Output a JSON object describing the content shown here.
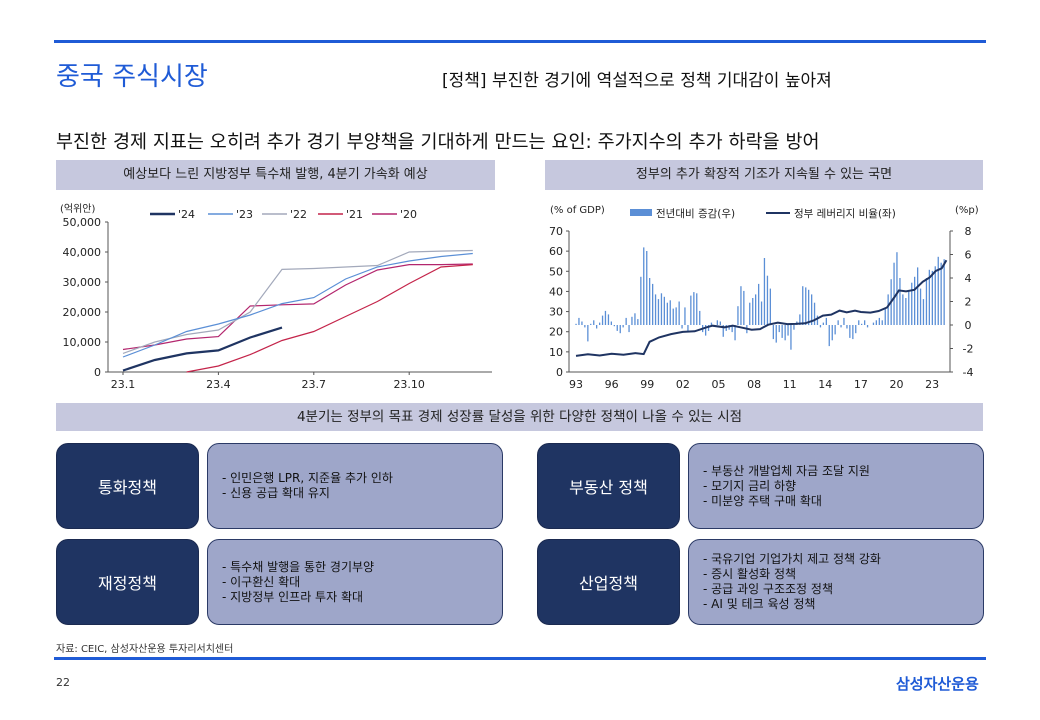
{
  "header": {
    "title": "중국 주식시장",
    "subtitle": "[정책] 부진한 경기에 역설적으로 정책 기대감이 높아져",
    "headline": "부진한 경제 지표는 오히려 추가 경기 부양책을 기대하게 만드는 요인: 주가지수의 추가 하락을 방어"
  },
  "left_panel": {
    "title": "예상보다 느린 지방정부 특수채 발행, 4분기 가속화 예상"
  },
  "right_panel": {
    "title": "정부의 추가 확장적 기조가 지속될 수 있는 국면"
  },
  "chart_data": [
    {
      "type": "line",
      "unit_label": "(억위안)",
      "x_tick_labels": [
        "23.1",
        "23.4",
        "23.7",
        "23.10"
      ],
      "ylim": [
        0,
        50000
      ],
      "y_ticks": [
        0,
        10000,
        20000,
        30000,
        40000,
        50000
      ],
      "y_tick_labels": [
        "0",
        "10,000",
        "20,000",
        "30,000",
        "40,000",
        "50,000"
      ],
      "legend_position": "top",
      "months": [
        1,
        2,
        3,
        4,
        5,
        6,
        7,
        8,
        9,
        10,
        11,
        12
      ],
      "series": [
        {
          "name": "'24",
          "color": "#1f3462",
          "width": 2.2,
          "values": [
            500,
            4000,
            6200,
            7200,
            11500,
            14800,
            null,
            null,
            null,
            null,
            null,
            null
          ]
        },
        {
          "name": "'23",
          "color": "#5b8fd6",
          "width": 1.2,
          "values": [
            5000,
            9000,
            13500,
            16000,
            19000,
            22800,
            24800,
            31000,
            35000,
            37000,
            38500,
            39500
          ]
        },
        {
          "name": "'22",
          "color": "#a3a9bb",
          "width": 1.2,
          "values": [
            6200,
            10000,
            12500,
            14000,
            20000,
            34200,
            34500,
            35000,
            35500,
            40000,
            40300,
            40500
          ]
        },
        {
          "name": "'21",
          "color": "#c4244a",
          "width": 1.2,
          "values": [
            null,
            null,
            0,
            2000,
            5800,
            10500,
            13500,
            18500,
            23500,
            29500,
            35000,
            35800
          ]
        },
        {
          "name": "'20",
          "color": "#b3266e",
          "width": 1.2,
          "values": [
            7500,
            9000,
            11000,
            11800,
            22000,
            22400,
            22700,
            29000,
            34000,
            35800,
            35800,
            36000
          ]
        }
      ]
    },
    {
      "type": "bar+line",
      "left_axis_label": "(% of GDP)",
      "right_axis_label": "(%p)",
      "x_tick_labels": [
        "93",
        "96",
        "99",
        "02",
        "05",
        "08",
        "11",
        "14",
        "17",
        "20",
        "23"
      ],
      "x_range": [
        1993,
        2024.25
      ],
      "left_ylim": [
        0,
        70
      ],
      "left_ticks": [
        0,
        10,
        20,
        30,
        40,
        50,
        60,
        70
      ],
      "right_ylim": [
        -4,
        8
      ],
      "right_ticks": [
        -4,
        -2,
        0,
        2,
        4,
        6,
        8
      ],
      "bar_series": {
        "name": "전년대비 증감(우)",
        "color": "#5b8fd6",
        "axis": "right",
        "values": [
          0.1,
          0.6,
          0.3,
          -0.2,
          -1.4,
          0.1,
          0.4,
          -0.3,
          0.2,
          0.8,
          1.2,
          0.9,
          0.3,
          -0.1,
          -0.5,
          -0.7,
          -0.2,
          0.6,
          -0.6,
          0.7,
          1.0,
          0.5,
          4.1,
          6.6,
          6.3,
          4.0,
          3.5,
          2.6,
          2.2,
          2.7,
          2.4,
          1.9,
          2.1,
          1.4,
          1.5,
          2.0,
          -0.3,
          1.5,
          -0.6,
          2.5,
          2.8,
          2.7,
          1.2,
          -0.6,
          -0.9,
          -0.5,
          0.2,
          -0.1,
          0.4,
          0.3,
          -1.0,
          -0.5,
          -0.4,
          -0.6,
          -1.3,
          1.6,
          3.3,
          2.9,
          -0.7,
          1.9,
          2.3,
          2.6,
          3.5,
          2.0,
          5.7,
          4.2,
          3.1,
          -1.2,
          -1.5,
          -0.6,
          -1.1,
          -1.3,
          -0.9,
          -2.1,
          -0.4,
          0.3,
          0.9,
          3.3,
          3.2,
          3.0,
          2.6,
          1.9,
          0.8,
          -0.2,
          0.2,
          0.6,
          -1.8,
          -1.3,
          -0.8,
          0.4,
          -0.2,
          0.6,
          -0.3,
          -1.1,
          -1.2,
          -0.7,
          0.4,
          0.1,
          0.4,
          -0.2,
          0.0,
          0.2,
          0.4,
          0.6,
          0.4,
          1.5,
          2.6,
          3.9,
          5.3,
          6.2,
          4.0,
          2.6,
          2.3,
          2.9,
          3.6,
          4.1,
          4.9,
          3.1,
          2.2,
          4.0,
          4.7,
          4.6,
          5.0,
          5.8,
          5.3,
          5.6
        ]
      },
      "line_series": {
        "name": "정부 레버리지 비율(좌)",
        "color": "#1f3462",
        "axis": "left",
        "points": [
          [
            1993,
            8.0
          ],
          [
            1994,
            8.8
          ],
          [
            1995,
            8.2
          ],
          [
            1996,
            9.1
          ],
          [
            1997,
            8.6
          ],
          [
            1998,
            9.4
          ],
          [
            1998.7,
            8.9
          ],
          [
            1999.2,
            15.0
          ],
          [
            2000,
            17.2
          ],
          [
            2001,
            18.8
          ],
          [
            2002,
            19.9
          ],
          [
            2003,
            20.2
          ],
          [
            2004,
            22.2
          ],
          [
            2004.5,
            23.0
          ],
          [
            2005.5,
            22.2
          ],
          [
            2006.2,
            23.0
          ],
          [
            2007,
            22.0
          ],
          [
            2007.8,
            21.0
          ],
          [
            2008.5,
            21.3
          ],
          [
            2009.2,
            23.5
          ],
          [
            2010,
            24.5
          ],
          [
            2010.8,
            23.8
          ],
          [
            2011.5,
            23.9
          ],
          [
            2012.3,
            24.2
          ],
          [
            2013,
            25.5
          ],
          [
            2013.8,
            28.0
          ],
          [
            2014.5,
            28.5
          ],
          [
            2015.2,
            30.5
          ],
          [
            2015.8,
            29.6
          ],
          [
            2016.5,
            30.5
          ],
          [
            2017,
            29.8
          ],
          [
            2017.8,
            29.5
          ],
          [
            2018.5,
            30.3
          ],
          [
            2019.2,
            32.0
          ],
          [
            2019.8,
            37.0
          ],
          [
            2020.2,
            40.5
          ],
          [
            2020.8,
            40.0
          ],
          [
            2021.5,
            40.8
          ],
          [
            2022.2,
            44.8
          ],
          [
            2022.8,
            47.0
          ],
          [
            2023.3,
            50.2
          ],
          [
            2023.8,
            51.5
          ],
          [
            2024.2,
            55.5
          ]
        ]
      }
    }
  ],
  "band": {
    "text": "4분기는 정부의 목표 경제 성장률 달성을 위한 다양한 정책이 나올 수 있는 시점"
  },
  "policies": [
    {
      "label": "통화정책",
      "items": [
        "- 인민은행 LPR, 지준율 추가 인하",
        "- 신용 공급 확대 유지"
      ]
    },
    {
      "label": "부동산 정책",
      "items": [
        "- 부동산 개발업체 자금 조달 지원",
        "- 모기지 금리 하향",
        "- 미분양 주택 구매 확대"
      ]
    },
    {
      "label": "재정정책",
      "items": [
        "- 특수채 발행을 통한 경기부양",
        "- 이구환신 확대",
        "- 지방정부 인프라 투자 확대"
      ]
    },
    {
      "label": "산업정책",
      "items": [
        "- 국유기업 기업가치 제고 정책 강화",
        "- 증시 활성화 정책",
        "- 공급 과잉 구조조정 정책",
        "- AI 및 테크 육성 정책"
      ]
    }
  ],
  "footer": {
    "source": "자료: CEIC, 삼성자산운용 투자리서치센터",
    "page": "22",
    "brand": "삼성자산운용"
  }
}
